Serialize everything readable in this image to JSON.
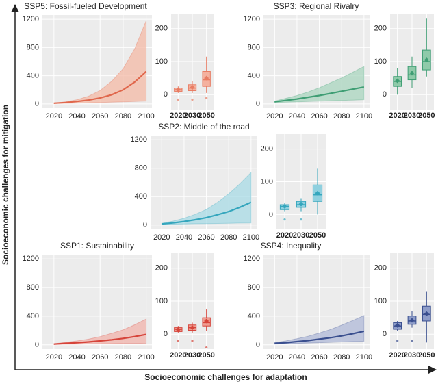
{
  "figure": {
    "ylabel": "Socioeconomic challenges for mitigation",
    "xlabel": "Socioeconomic challenges for adaptation"
  },
  "chart_data": [
    {
      "type": "line",
      "title": "SSP5: Fossil-fueled Development",
      "color": "#e0674c",
      "band_color": "#f4b9a6",
      "x": [
        2020,
        2030,
        2040,
        2050,
        2060,
        2070,
        2080,
        2090,
        2100
      ],
      "values": [
        10,
        20,
        35,
        55,
        85,
        130,
        200,
        310,
        460
      ],
      "lower": [
        5,
        8,
        12,
        15,
        20,
        25,
        30,
        35,
        40
      ],
      "upper": [
        10,
        30,
        60,
        110,
        190,
        320,
        500,
        780,
        1180
      ],
      "xlim": [
        2010,
        2105
      ],
      "ylim": [
        -60,
        1260
      ],
      "xticks": [
        2020,
        2040,
        2060,
        2080,
        2100
      ],
      "yticks": [
        0,
        400,
        800,
        1200
      ],
      "grid": true
    },
    {
      "type": "box",
      "color": "#e87c63",
      "band_color": "#f4b19f",
      "categories": [
        "2020",
        "2030",
        "2050"
      ],
      "boxes": [
        {
          "min": 5,
          "q1": 10,
          "median": 15,
          "q3": 20,
          "max": 25,
          "mean": 15,
          "outliers": [
            -15
          ]
        },
        {
          "min": 5,
          "q1": 12,
          "median": 20,
          "q3": 30,
          "max": 40,
          "mean": 22,
          "outliers": [
            -15
          ]
        },
        {
          "min": 5,
          "q1": 25,
          "median": 45,
          "q3": 70,
          "max": 115,
          "mean": 50,
          "outliers": [
            -10
          ]
        }
      ],
      "ylim": [
        -45,
        245
      ],
      "yticks": [
        0,
        100,
        200
      ],
      "grid": true
    },
    {
      "type": "line",
      "title": "SSP3: Regional Rivalry",
      "color": "#3f9e74",
      "band_color": "#a9d6bf",
      "x": [
        2020,
        2030,
        2040,
        2050,
        2060,
        2070,
        2080,
        2090,
        2100
      ],
      "values": [
        30,
        50,
        70,
        95,
        120,
        150,
        180,
        210,
        240
      ],
      "lower": [
        20,
        25,
        30,
        35,
        40,
        45,
        50,
        55,
        60
      ],
      "upper": [
        40,
        80,
        120,
        170,
        230,
        300,
        370,
        450,
        530
      ],
      "xlim": [
        2010,
        2105
      ],
      "ylim": [
        -60,
        1260
      ],
      "xticks": [
        2020,
        2040,
        2060,
        2080,
        2100
      ],
      "yticks": [
        0,
        400,
        800,
        1200
      ],
      "grid": true
    },
    {
      "type": "box",
      "color": "#3f9e74",
      "band_color": "#8fcaa9",
      "categories": [
        "2020",
        "2030",
        "2050"
      ],
      "boxes": [
        {
          "min": 0,
          "q1": 25,
          "median": 40,
          "q3": 55,
          "max": 80,
          "mean": 42,
          "outliers": []
        },
        {
          "min": 20,
          "q1": 45,
          "median": 60,
          "q3": 85,
          "max": 115,
          "mean": 65,
          "outliers": []
        },
        {
          "min": 55,
          "q1": 75,
          "median": 100,
          "q3": 135,
          "max": 230,
          "mean": 105,
          "outliers": []
        }
      ],
      "ylim": [
        -45,
        245
      ],
      "yticks": [
        0,
        100,
        200
      ],
      "grid": true
    },
    {
      "type": "line",
      "title": "SSP2: Middle of the road",
      "color": "#35a6bd",
      "band_color": "#a8dbe6",
      "x": [
        2020,
        2030,
        2040,
        2050,
        2060,
        2070,
        2080,
        2090,
        2100
      ],
      "values": [
        15,
        30,
        50,
        75,
        105,
        145,
        190,
        250,
        320
      ],
      "lower": [
        10,
        12,
        15,
        18,
        20,
        22,
        25,
        28,
        30
      ],
      "upper": [
        25,
        55,
        95,
        150,
        220,
        320,
        440,
        580,
        740
      ],
      "xlim": [
        2010,
        2105
      ],
      "ylim": [
        -60,
        1260
      ],
      "xticks": [
        2020,
        2040,
        2060,
        2080,
        2100
      ],
      "yticks": [
        0,
        400,
        800,
        1200
      ],
      "grid": true
    },
    {
      "type": "box",
      "color": "#35a6bd",
      "band_color": "#8fd0df",
      "categories": [
        "2020",
        "2030",
        "2050"
      ],
      "boxes": [
        {
          "min": 10,
          "q1": 15,
          "median": 25,
          "q3": 30,
          "max": 35,
          "mean": 25,
          "outliers": [
            -15
          ]
        },
        {
          "min": 10,
          "q1": 22,
          "median": 30,
          "q3": 40,
          "max": 50,
          "mean": 32,
          "outliers": [
            -15
          ]
        },
        {
          "min": 0,
          "q1": 40,
          "median": 60,
          "q3": 90,
          "max": 140,
          "mean": 65,
          "outliers": []
        }
      ],
      "ylim": [
        -45,
        245
      ],
      "yticks": [
        0,
        100,
        200
      ],
      "grid": true
    },
    {
      "type": "line",
      "title": "SSP1: Sustainability",
      "color": "#d6443a",
      "band_color": "#f2b3ab",
      "x": [
        2020,
        2030,
        2040,
        2050,
        2060,
        2070,
        2080,
        2090,
        2100
      ],
      "values": [
        10,
        20,
        30,
        40,
        55,
        70,
        90,
        115,
        145
      ],
      "lower": [
        5,
        8,
        10,
        12,
        14,
        16,
        18,
        20,
        22
      ],
      "upper": [
        15,
        35,
        55,
        80,
        115,
        160,
        210,
        280,
        360
      ],
      "xlim": [
        2010,
        2105
      ],
      "ylim": [
        -60,
        1260
      ],
      "xticks": [
        2020,
        2040,
        2060,
        2080,
        2100
      ],
      "yticks": [
        0,
        400,
        800,
        1200
      ],
      "grid": true
    },
    {
      "type": "box",
      "color": "#d6443a",
      "band_color": "#ef9d92",
      "categories": [
        "2020",
        "2030",
        "2050"
      ],
      "boxes": [
        {
          "min": 5,
          "q1": 8,
          "median": 15,
          "q3": 20,
          "max": 25,
          "mean": 14,
          "outliers": [
            -20
          ]
        },
        {
          "min": 5,
          "q1": 12,
          "median": 20,
          "q3": 28,
          "max": 35,
          "mean": 20,
          "outliers": [
            -20
          ]
        },
        {
          "min": 10,
          "q1": 25,
          "median": 35,
          "q3": 50,
          "max": 75,
          "mean": 40,
          "outliers": [
            -40
          ]
        }
      ],
      "ylim": [
        -45,
        245
      ],
      "yticks": [
        0,
        100,
        200
      ],
      "grid": true
    },
    {
      "type": "line",
      "title": "SSP4: Inequality",
      "color": "#3a4f8f",
      "band_color": "#b0b9d8",
      "x": [
        2020,
        2030,
        2040,
        2050,
        2060,
        2070,
        2080,
        2090,
        2100
      ],
      "values": [
        20,
        30,
        45,
        60,
        80,
        100,
        125,
        155,
        190
      ],
      "lower": [
        10,
        15,
        20,
        25,
        30,
        35,
        40,
        45,
        50
      ],
      "upper": [
        30,
        55,
        85,
        120,
        165,
        215,
        275,
        340,
        410
      ],
      "xlim": [
        2010,
        2105
      ],
      "ylim": [
        -60,
        1260
      ],
      "xticks": [
        2020,
        2040,
        2060,
        2080,
        2100
      ],
      "yticks": [
        0,
        400,
        800,
        1200
      ],
      "grid": true
    },
    {
      "type": "box",
      "color": "#3a4f8f",
      "band_color": "#8e9dc9",
      "categories": [
        "2020",
        "2030",
        "2050"
      ],
      "boxes": [
        {
          "min": 10,
          "q1": 15,
          "median": 25,
          "q3": 35,
          "max": 40,
          "mean": 27,
          "outliers": [
            -20
          ]
        },
        {
          "min": 20,
          "q1": 30,
          "median": 40,
          "q3": 55,
          "max": 70,
          "mean": 42,
          "outliers": [
            -20
          ]
        },
        {
          "min": -25,
          "q1": 40,
          "median": 60,
          "q3": 85,
          "max": 130,
          "mean": 62,
          "outliers": []
        }
      ],
      "ylim": [
        -45,
        245
      ],
      "yticks": [
        0,
        100,
        200
      ],
      "grid": true
    }
  ]
}
